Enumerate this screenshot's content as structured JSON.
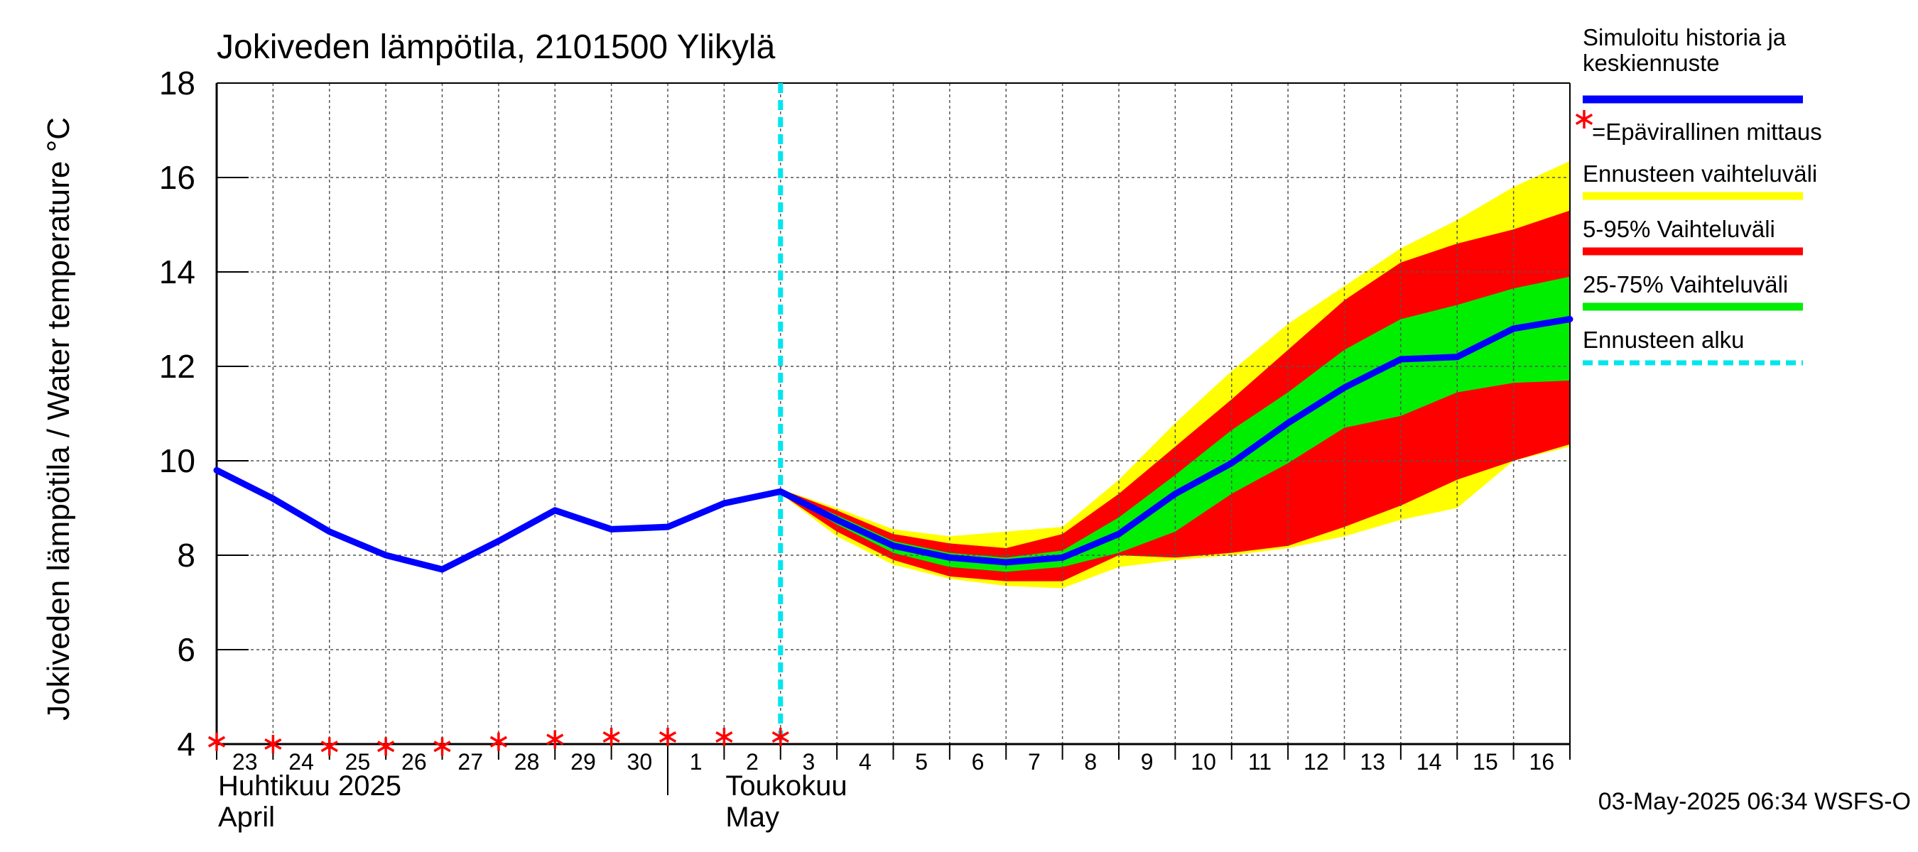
{
  "chart_data": {
    "type": "area",
    "title": "Jokiveden lämpötila, 2101500 Ylikylä",
    "ylabel": "Jokiveden lämpötila / Water temperature   °C",
    "ylim": [
      4,
      18
    ],
    "yticks": [
      4,
      6,
      8,
      10,
      12,
      14,
      16,
      18
    ],
    "day_labels": [
      "23",
      "24",
      "25",
      "26",
      "27",
      "28",
      "29",
      "30",
      "1",
      "2",
      "3",
      "4",
      "5",
      "6",
      "7",
      "8",
      "9",
      "10",
      "11",
      "12",
      "13",
      "14",
      "15",
      "16"
    ],
    "month_labels": [
      {
        "line1": "Huhtikuu  2025",
        "line2": "April"
      },
      {
        "line1": "Toukokuu",
        "line2": "May"
      }
    ],
    "x_days": [
      0,
      1,
      2,
      3,
      4,
      5,
      6,
      7,
      8,
      9,
      10,
      11,
      12,
      13,
      14,
      15,
      16,
      17,
      18,
      19,
      20,
      21,
      22,
      23,
      24
    ],
    "forecast_start_day": 10,
    "grid": true,
    "history": [
      9.8,
      9.2,
      8.5,
      8.0,
      7.7,
      8.3,
      8.95,
      8.55,
      8.6,
      9.1,
      9.35
    ],
    "median_forecast": [
      9.35,
      8.75,
      8.2,
      7.95,
      7.85,
      7.95,
      8.45,
      9.3,
      9.95,
      10.8,
      11.55,
      12.15,
      12.2,
      12.8,
      13.0
    ],
    "band_yellow": {
      "upper": [
        9.4,
        9.0,
        8.55,
        8.4,
        8.5,
        8.6,
        9.6,
        10.8,
        11.9,
        12.9,
        13.7,
        14.5,
        15.1,
        15.8,
        16.35
      ],
      "lower": [
        9.3,
        8.4,
        7.8,
        7.5,
        7.35,
        7.3,
        7.75,
        7.9,
        8.0,
        8.15,
        8.4,
        8.75,
        9.0,
        10.0,
        10.3
      ]
    },
    "band_red": {
      "upper": [
        9.4,
        8.95,
        8.45,
        8.25,
        8.15,
        8.45,
        9.3,
        10.3,
        11.3,
        12.35,
        13.4,
        14.2,
        14.6,
        14.9,
        15.3
      ],
      "lower": [
        9.3,
        8.5,
        7.9,
        7.55,
        7.45,
        7.45,
        8.0,
        7.95,
        8.05,
        8.2,
        8.6,
        9.05,
        9.6,
        10.0,
        10.35
      ]
    },
    "band_green": {
      "upper": [
        9.35,
        8.85,
        8.3,
        8.05,
        7.95,
        8.1,
        8.8,
        9.7,
        10.65,
        11.45,
        12.35,
        13.0,
        13.3,
        13.65,
        13.9
      ],
      "lower": [
        9.35,
        8.65,
        8.05,
        7.75,
        7.65,
        7.75,
        8.05,
        8.5,
        9.3,
        9.95,
        10.7,
        10.95,
        11.45,
        11.65,
        11.7
      ]
    },
    "invalid_measurements": {
      "days": [
        0,
        1,
        2,
        3,
        4,
        5,
        6,
        7,
        8,
        9,
        10
      ],
      "values": [
        4.05,
        4.0,
        3.95,
        3.95,
        3.95,
        4.05,
        4.1,
        4.15,
        4.15,
        4.15,
        4.15
      ]
    },
    "legend_placement": "right",
    "legend": [
      {
        "label_lines": [
          "Simuloitu historia ja",
          "keskiennuste"
        ],
        "swatch": "line",
        "color": "#0000ff"
      },
      {
        "label_lines": [
          "=Epävirallinen mittaus"
        ],
        "swatch": "star",
        "color": "#ff0000"
      },
      {
        "label_lines": [
          "Ennusteen vaihteluväli"
        ],
        "swatch": "line",
        "color": "#ffff00"
      },
      {
        "label_lines": [
          "5-95% Vaihteluväli"
        ],
        "swatch": "line",
        "color": "#ff0000"
      },
      {
        "label_lines": [
          "25-75% Vaihteluväli"
        ],
        "swatch": "line",
        "color": "#00ee00"
      },
      {
        "label_lines": [
          "Ennusteen alku"
        ],
        "swatch": "dash",
        "color": "#00e5ee"
      }
    ],
    "colors": {
      "median": "#0000ff",
      "yellow": "#ffff00",
      "red": "#ff0000",
      "green": "#00ee00",
      "forecast_line": "#00e5ee",
      "star": "#ff0000",
      "grid": "#555555"
    },
    "footer": "03-May-2025 06:34 WSFS-O"
  }
}
